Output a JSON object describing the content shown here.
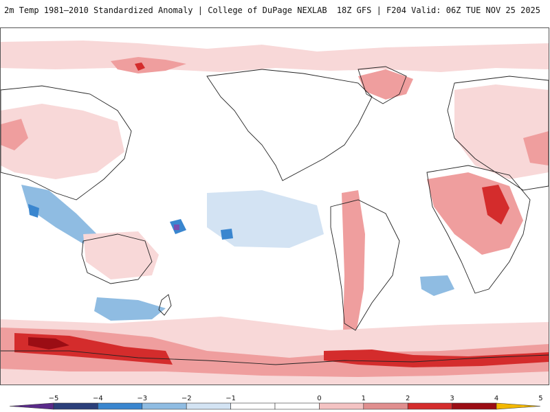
{
  "header": {
    "title": "2m Temp 1981–2010 Standardized Anomaly | College of DuPage NEXLAB",
    "run_info": "18Z GFS | F204 Valid: 06Z TUE NOV 25 2025"
  },
  "map": {
    "projection": "global cylindrical, Pacific-centered",
    "variable": "2m temperature standardized anomaly",
    "colors": {
      "background": "#ffffff",
      "land_outline": "#222222",
      "warm_1": "#f8d8d8",
      "warm_2": "#ef9e9e",
      "warm_3": "#d42c2c",
      "warm_4": "#9b0d14",
      "cool_1": "#d3e3f3",
      "cool_2": "#8fbce2",
      "cool_3": "#3a86cf",
      "cool_4": "#2b3f7a",
      "cool_5": "#7a4fb0"
    }
  },
  "colorbar": {
    "ticks": [
      "−5",
      "−4",
      "−3",
      "−2",
      "−1",
      "0",
      "1",
      "2",
      "3",
      "4",
      "5"
    ],
    "segments": [
      "#5a2a8a",
      "#2b3f7a",
      "#3a86cf",
      "#8fbce2",
      "#d3e3f3",
      "#ffffff",
      "#ffffff",
      "#f4c3c3",
      "#e08f8f",
      "#d42c2c",
      "#9b0d14",
      "#f3b800"
    ]
  }
}
